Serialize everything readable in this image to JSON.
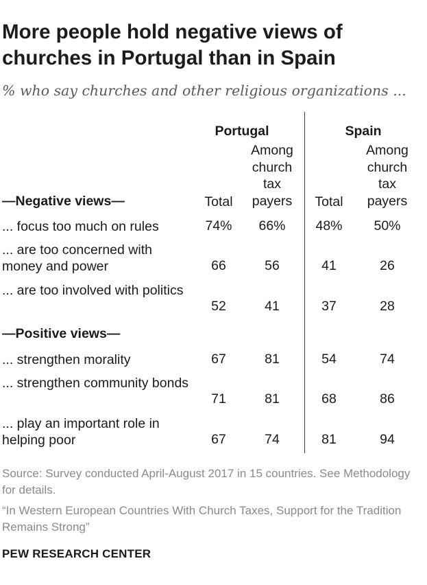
{
  "chart_data": {
    "type": "table",
    "title": "More people hold negative views of churches in Portugal than in Spain",
    "subtitle": "% who say churches and other religious organizations ...",
    "countries": [
      "Portugal",
      "Spain"
    ],
    "column_headers": [
      "Among church tax payers",
      "Total",
      "Among church tax payers",
      "Total"
    ],
    "col_total": "Total",
    "col_among_lines": [
      "Among",
      "church",
      "tax",
      "payers"
    ],
    "sections": [
      {
        "name": "—Negative views—",
        "rows": [
          {
            "label": "... focus too much on rules",
            "values": [
              "74%",
              "66%",
              "48%",
              "50%"
            ]
          },
          {
            "label": "... are too concerned with money and power",
            "values": [
              "66",
              "56",
              "41",
              "26"
            ]
          },
          {
            "label": "... are too involved with politics",
            "values": [
              "52",
              "41",
              "37",
              "28"
            ]
          }
        ]
      },
      {
        "name": "—Positive views—",
        "rows": [
          {
            "label": "... strengthen morality",
            "values": [
              "67",
              "81",
              "54",
              "74"
            ]
          },
          {
            "label": "... strengthen community bonds",
            "values": [
              "71",
              "81",
              "68",
              "86"
            ]
          },
          {
            "label": "... play an important role in helping poor",
            "values": [
              "67",
              "74",
              "81",
              "94"
            ]
          }
        ]
      }
    ]
  },
  "source": {
    "note": "Source: Survey conducted April-August 2017 in 15 countries. See Methodology for details.",
    "report": "“In Western European Countries With Church Taxes, Support for the Tradition Remains Strong”"
  },
  "footer": "PEW RESEARCH CENTER"
}
